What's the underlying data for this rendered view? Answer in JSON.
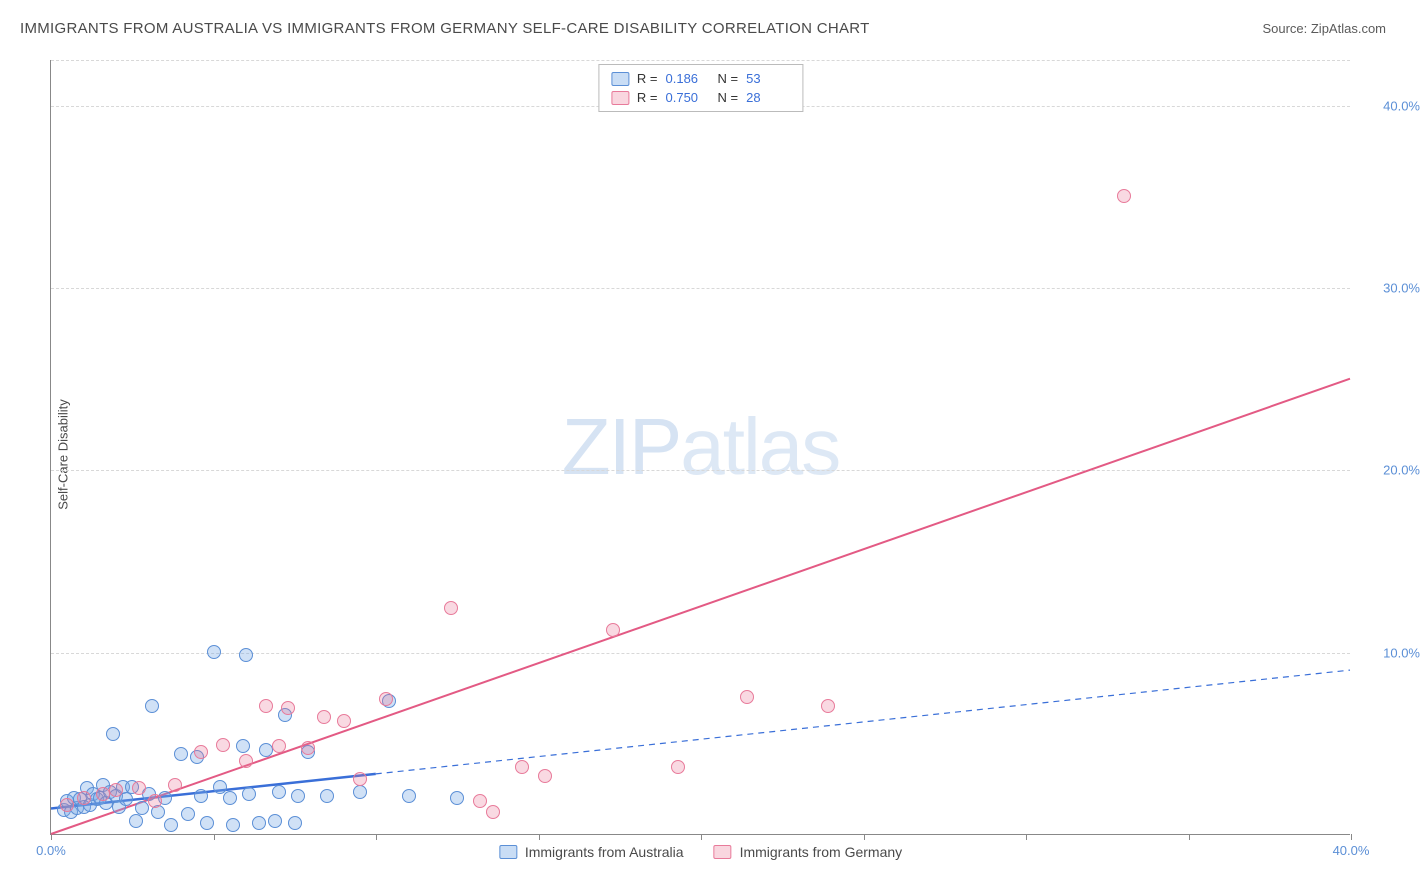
{
  "title": "IMMIGRANTS FROM AUSTRALIA VS IMMIGRANTS FROM GERMANY SELF-CARE DISABILITY CORRELATION CHART",
  "source": "Source: ZipAtlas.com",
  "ylabel": "Self-Care Disability",
  "watermark_a": "ZIP",
  "watermark_b": "atlas",
  "chart": {
    "type": "scatter",
    "xlim": [
      0,
      40
    ],
    "ylim": [
      0,
      42.5
    ],
    "xticks": [
      0,
      5,
      10,
      15,
      20,
      25,
      30,
      35,
      40
    ],
    "xtick_labels": [
      "0.0%",
      "",
      "",
      "",
      "",
      "",
      "",
      "",
      "40.0%"
    ],
    "yticks": [
      10,
      20,
      30,
      40
    ],
    "ytick_labels": [
      "10.0%",
      "20.0%",
      "30.0%",
      "40.0%"
    ],
    "background_color": "#ffffff",
    "grid_color": "#d8d8d8",
    "axis_color": "#888888",
    "marker_size": 14,
    "series": [
      {
        "name": "Immigrants from Australia",
        "color_fill": "rgba(120,170,230,0.35)",
        "color_stroke": "#5b8fd6",
        "R": "0.186",
        "N": "53",
        "trend": {
          "x1": 0,
          "y1": 1.4,
          "x2": 40,
          "y2": 9.0,
          "solid_until_x": 10,
          "stroke": "#3a6fd8",
          "stroke_width_solid": 2.5,
          "stroke_width_dash": 1.2,
          "dash": "6,5"
        },
        "points": [
          [
            0.4,
            1.3
          ],
          [
            0.5,
            1.8
          ],
          [
            0.6,
            1.2
          ],
          [
            0.7,
            2.0
          ],
          [
            0.8,
            1.4
          ],
          [
            0.9,
            1.9
          ],
          [
            1.0,
            1.5
          ],
          [
            1.1,
            2.5
          ],
          [
            1.2,
            1.6
          ],
          [
            1.3,
            2.2
          ],
          [
            1.4,
            1.9
          ],
          [
            1.5,
            2.0
          ],
          [
            1.6,
            2.7
          ],
          [
            1.7,
            1.7
          ],
          [
            1.8,
            2.3
          ],
          [
            1.9,
            5.5
          ],
          [
            2.0,
            2.1
          ],
          [
            2.1,
            1.5
          ],
          [
            2.2,
            2.6
          ],
          [
            2.3,
            1.9
          ],
          [
            2.5,
            2.6
          ],
          [
            2.6,
            0.7
          ],
          [
            2.8,
            1.4
          ],
          [
            3.0,
            2.2
          ],
          [
            3.1,
            7.0
          ],
          [
            3.3,
            1.2
          ],
          [
            3.5,
            2.0
          ],
          [
            3.7,
            0.5
          ],
          [
            4.0,
            4.4
          ],
          [
            4.2,
            1.1
          ],
          [
            4.5,
            4.2
          ],
          [
            4.6,
            2.1
          ],
          [
            4.8,
            0.6
          ],
          [
            5.0,
            10.0
          ],
          [
            5.2,
            2.6
          ],
          [
            5.5,
            2.0
          ],
          [
            5.6,
            0.5
          ],
          [
            5.9,
            4.8
          ],
          [
            6.0,
            9.8
          ],
          [
            6.1,
            2.2
          ],
          [
            6.4,
            0.6
          ],
          [
            6.6,
            4.6
          ],
          [
            6.9,
            0.7
          ],
          [
            7.0,
            2.3
          ],
          [
            7.2,
            6.5
          ],
          [
            7.5,
            0.6
          ],
          [
            7.6,
            2.1
          ],
          [
            7.9,
            4.5
          ],
          [
            8.5,
            2.1
          ],
          [
            9.5,
            2.3
          ],
          [
            10.4,
            7.3
          ],
          [
            11.0,
            2.1
          ],
          [
            12.5,
            2.0
          ]
        ]
      },
      {
        "name": "Immigrants from Germany",
        "color_fill": "rgba(235,120,150,0.28)",
        "color_stroke": "#e87a9a",
        "R": "0.750",
        "N": "28",
        "trend": {
          "x1": 0,
          "y1": 0,
          "x2": 40,
          "y2": 25.0,
          "solid_until_x": 40,
          "stroke": "#e35a84",
          "stroke_width_solid": 2,
          "stroke_width_dash": 0,
          "dash": ""
        },
        "points": [
          [
            0.5,
            1.6
          ],
          [
            1.0,
            2.0
          ],
          [
            1.6,
            2.2
          ],
          [
            2.0,
            2.4
          ],
          [
            2.7,
            2.5
          ],
          [
            3.2,
            1.8
          ],
          [
            3.8,
            2.7
          ],
          [
            4.6,
            4.5
          ],
          [
            5.3,
            4.9
          ],
          [
            6.0,
            4.0
          ],
          [
            6.6,
            7.0
          ],
          [
            7.0,
            4.8
          ],
          [
            7.3,
            6.9
          ],
          [
            7.9,
            4.7
          ],
          [
            8.4,
            6.4
          ],
          [
            9.0,
            6.2
          ],
          [
            9.5,
            3.0
          ],
          [
            10.3,
            7.4
          ],
          [
            12.3,
            12.4
          ],
          [
            13.2,
            1.8
          ],
          [
            13.6,
            1.2
          ],
          [
            14.5,
            3.7
          ],
          [
            15.2,
            3.2
          ],
          [
            17.3,
            11.2
          ],
          [
            19.3,
            3.7
          ],
          [
            21.4,
            7.5
          ],
          [
            23.9,
            7.0
          ],
          [
            33.0,
            35.0
          ]
        ]
      }
    ]
  },
  "legend_top": {
    "r_label": "R =",
    "n_label": "N ="
  },
  "colors": {
    "tick_label": "#5b8fd6",
    "title": "#4a4a4a"
  }
}
